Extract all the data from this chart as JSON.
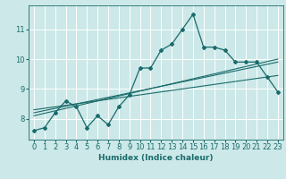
{
  "xlabel": "Humidex (Indice chaleur)",
  "bg_color": "#cce8e8",
  "grid_color": "#aed4d4",
  "line_color": "#1a6b6b",
  "y_main": [
    7.6,
    7.7,
    8.2,
    8.6,
    8.4,
    7.7,
    8.1,
    7.8,
    8.4,
    8.8,
    9.7,
    9.7,
    10.3,
    10.5,
    11.0,
    11.5,
    10.4,
    10.4,
    10.3,
    9.9,
    9.9,
    9.9,
    9.4,
    8.9
  ],
  "y_avg": [
    8.3,
    8.35,
    8.4,
    8.45,
    8.5,
    8.55,
    8.6,
    8.65,
    8.7,
    8.75,
    8.8,
    8.85,
    8.9,
    8.95,
    9.0,
    9.05,
    9.1,
    9.15,
    9.2,
    9.25,
    9.3,
    9.35,
    9.4,
    9.45
  ],
  "trend1_start": 8.1,
  "trend1_end": 10.0,
  "trend2_start": 8.2,
  "trend2_end": 9.9,
  "ylim": [
    7.3,
    11.8
  ],
  "xlim": [
    -0.5,
    23.5
  ],
  "yticks": [
    8,
    9,
    10,
    11
  ],
  "xticks": [
    0,
    1,
    2,
    3,
    4,
    5,
    6,
    7,
    8,
    9,
    10,
    11,
    12,
    13,
    14,
    15,
    16,
    17,
    18,
    19,
    20,
    21,
    22,
    23
  ],
  "xlabel_fontsize": 6.5,
  "tick_fontsize": 6.0
}
